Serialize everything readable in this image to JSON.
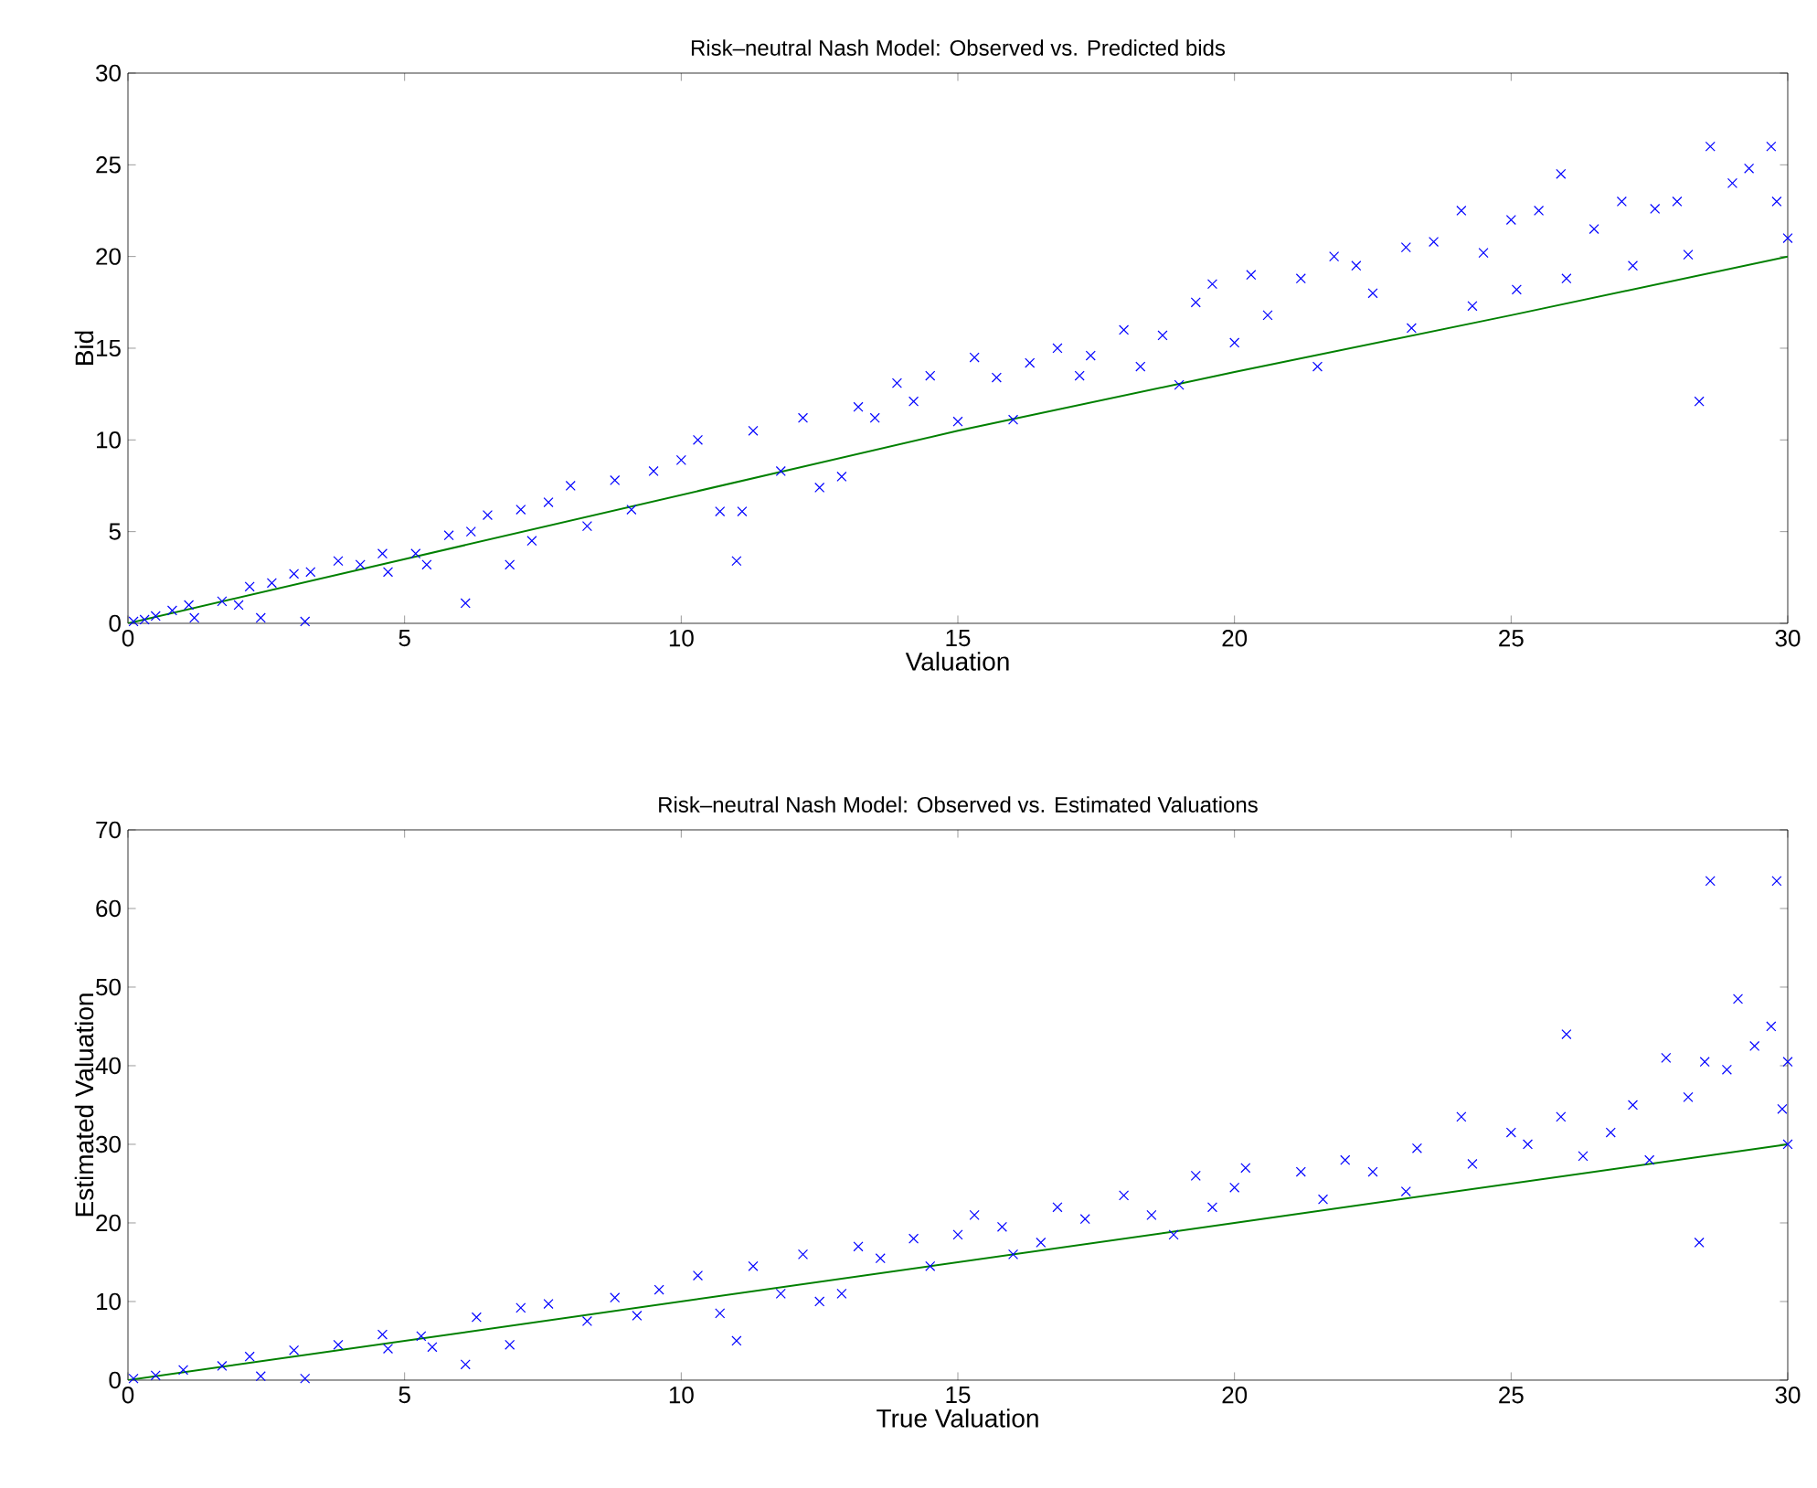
{
  "chart_data": [
    {
      "type": "scatter",
      "title": "Risk–neutral Nash Model: Observed vs. Predicted bids",
      "xlabel": "Valuation",
      "ylabel": "Bid",
      "xlim": [
        0,
        30
      ],
      "ylim": [
        0,
        30
      ],
      "xticks": [
        0,
        5,
        10,
        15,
        20,
        25,
        30
      ],
      "yticks": [
        0,
        5,
        10,
        15,
        20,
        25,
        30
      ],
      "series": [
        {
          "color": "#0000ff",
          "marker": "cross",
          "x": [
            0.1,
            0.3,
            0.5,
            0.8,
            1.1,
            1.2,
            1.7,
            2.0,
            2.2,
            2.4,
            2.6,
            3.0,
            3.2,
            3.3,
            3.8,
            4.2,
            4.6,
            4.7,
            5.2,
            5.4,
            5.8,
            6.1,
            6.2,
            6.5,
            6.9,
            7.1,
            7.3,
            7.6,
            8.0,
            8.3,
            8.8,
            9.1,
            9.5,
            10.0,
            10.3,
            10.7,
            11.0,
            11.1,
            11.3,
            11.8,
            12.2,
            12.5,
            12.9,
            13.2,
            13.5,
            13.9,
            14.2,
            14.5,
            15.0,
            15.3,
            15.7,
            16.0,
            16.3,
            16.8,
            17.2,
            17.4,
            18.0,
            18.3,
            18.7,
            19.0,
            19.3,
            19.6,
            20.0,
            20.3,
            20.6,
            21.2,
            21.5,
            21.8,
            22.2,
            22.5,
            23.1,
            23.2,
            23.6,
            24.1,
            24.3,
            24.5,
            25.0,
            25.1,
            25.5,
            25.9,
            26.0,
            26.5,
            27.0,
            27.2,
            27.6,
            28.0,
            28.2,
            28.4,
            28.6,
            29.0,
            29.3,
            29.7,
            29.8,
            30.0
          ],
          "values": [
            0.1,
            0.2,
            0.4,
            0.7,
            1.0,
            0.3,
            1.2,
            1.0,
            2.0,
            0.3,
            2.2,
            2.7,
            0.1,
            2.8,
            3.4,
            3.2,
            3.8,
            2.8,
            3.8,
            3.2,
            4.8,
            1.1,
            5.0,
            5.9,
            3.2,
            6.2,
            4.5,
            6.6,
            7.5,
            5.3,
            7.8,
            6.2,
            8.3,
            8.9,
            10.0,
            6.1,
            3.4,
            6.1,
            10.5,
            8.3,
            11.2,
            7.4,
            8.0,
            11.8,
            11.2,
            13.1,
            12.1,
            13.5,
            11.0,
            14.5,
            13.4,
            11.1,
            14.2,
            15.0,
            13.5,
            14.6,
            16.0,
            14.0,
            15.7,
            13.0,
            17.5,
            18.5,
            15.3,
            19.0,
            16.8,
            18.8,
            14.0,
            20.0,
            19.5,
            18.0,
            20.5,
            16.1,
            20.8,
            22.5,
            17.3,
            20.2,
            22.0,
            18.2,
            22.5,
            24.5,
            18.8,
            21.5,
            23.0,
            19.5,
            22.6,
            23.0,
            20.1,
            12.1,
            26.0,
            24.0,
            24.8,
            26.0,
            23.0,
            21.0
          ]
        },
        {
          "type": "line",
          "color": "#008000",
          "marker": "none",
          "x": [
            0,
            5,
            10,
            15,
            20,
            25,
            30
          ],
          "values": [
            0,
            3.5,
            7.0,
            10.5,
            13.7,
            16.8,
            20.0
          ]
        }
      ]
    },
    {
      "type": "scatter",
      "title": "Risk–neutral Nash Model: Observed vs. Estimated Valuations",
      "xlabel": "True Valuation",
      "ylabel": "Estimated Valuation",
      "xlim": [
        0,
        30
      ],
      "ylim": [
        0,
        70
      ],
      "xticks": [
        0,
        5,
        10,
        15,
        20,
        25,
        30
      ],
      "yticks": [
        0,
        10,
        20,
        30,
        40,
        50,
        60,
        70
      ],
      "series": [
        {
          "color": "#0000ff",
          "marker": "cross",
          "x": [
            0.1,
            0.5,
            1.0,
            1.7,
            2.2,
            2.4,
            3.0,
            3.2,
            3.8,
            4.6,
            4.7,
            5.3,
            5.5,
            6.1,
            6.3,
            6.9,
            7.1,
            7.6,
            8.3,
            8.8,
            9.2,
            9.6,
            10.3,
            10.7,
            11.0,
            11.3,
            11.8,
            12.2,
            12.5,
            12.9,
            13.2,
            13.6,
            14.2,
            14.5,
            15.0,
            15.3,
            15.8,
            16.0,
            16.5,
            16.8,
            17.3,
            18.0,
            18.5,
            18.9,
            19.3,
            19.6,
            20.0,
            20.2,
            21.2,
            21.6,
            22.0,
            22.5,
            23.1,
            23.3,
            24.1,
            24.3,
            25.0,
            25.3,
            25.9,
            26.0,
            26.3,
            26.8,
            27.2,
            27.5,
            27.8,
            28.2,
            28.4,
            28.5,
            28.6,
            28.9,
            29.1,
            29.4,
            29.7,
            29.8,
            29.9,
            30.0,
            30.0
          ],
          "values": [
            0.2,
            0.6,
            1.3,
            1.8,
            3.0,
            0.5,
            3.8,
            0.2,
            4.5,
            5.8,
            4.0,
            5.6,
            4.2,
            2.0,
            8.0,
            4.5,
            9.2,
            9.7,
            7.5,
            10.5,
            8.2,
            11.5,
            13.3,
            8.5,
            5.0,
            14.5,
            11.0,
            16.0,
            10.0,
            11.0,
            17.0,
            15.5,
            18.0,
            14.5,
            18.5,
            21.0,
            19.5,
            16.0,
            17.5,
            22.0,
            20.5,
            23.5,
            21.0,
            18.5,
            26.0,
            22.0,
            24.5,
            27.0,
            26.5,
            23.0,
            28.0,
            26.5,
            24.0,
            29.5,
            33.5,
            27.5,
            31.5,
            30.0,
            33.5,
            44.0,
            28.5,
            31.5,
            35.0,
            28.0,
            41.0,
            36.0,
            17.5,
            40.5,
            63.5,
            39.5,
            48.5,
            42.5,
            45.0,
            63.5,
            34.5,
            40.5,
            30.0
          ]
        },
        {
          "type": "line",
          "color": "#008000",
          "marker": "none",
          "x": [
            0,
            10,
            20,
            30
          ],
          "values": [
            0,
            10,
            20,
            30
          ]
        }
      ]
    }
  ]
}
